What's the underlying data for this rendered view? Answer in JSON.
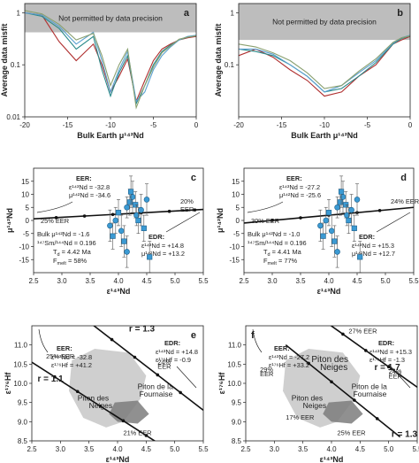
{
  "chart_data": [
    {
      "panel": "a",
      "type": "line",
      "ylabel": "Average data misfit",
      "xlabel": "Bulk Earth μ¹⁴²Nd",
      "yscale": "log",
      "xlim": [
        -20,
        0
      ],
      "ylim": [
        0.01,
        1.5
      ],
      "xticks": [
        "-20",
        "-15",
        "-10",
        "-5",
        "0"
      ],
      "yticks": [
        "0.01",
        "0.1",
        "1"
      ],
      "shade_text": "Not permitted by data precision",
      "shade_threshold": 0.42,
      "series": [
        {
          "color": "#b03030",
          "x": [
            -20,
            -18,
            -16,
            -14,
            -12,
            -11,
            -10,
            -9,
            -8,
            -7,
            -6,
            -5,
            -4,
            -3,
            -2,
            -1,
            0
          ],
          "y": [
            1.0,
            0.9,
            0.28,
            0.12,
            0.25,
            0.1,
            0.03,
            0.06,
            0.13,
            0.02,
            0.05,
            0.12,
            0.2,
            0.25,
            0.3,
            0.33,
            0.35
          ]
        },
        {
          "color": "#2a8a8a",
          "x": [
            -20,
            -18,
            -16,
            -14,
            -12,
            -11,
            -10,
            -9,
            -8,
            -7,
            -6,
            -5,
            -4,
            -3,
            -2,
            -1,
            0
          ],
          "y": [
            1.0,
            0.85,
            0.5,
            0.2,
            0.35,
            0.08,
            0.025,
            0.07,
            0.15,
            0.018,
            0.04,
            0.1,
            0.18,
            0.24,
            0.3,
            0.34,
            0.36
          ]
        },
        {
          "color": "#5aa0d0",
          "x": [
            -20,
            -18,
            -16,
            -14,
            -12,
            -11,
            -10,
            -9,
            -8,
            -7,
            -6,
            -5,
            -4,
            -3,
            -2,
            -1,
            0
          ],
          "y": [
            1.0,
            0.9,
            0.55,
            0.25,
            0.42,
            0.12,
            0.03,
            0.08,
            0.18,
            0.02,
            0.03,
            0.08,
            0.15,
            0.22,
            0.3,
            0.35,
            0.37
          ]
        },
        {
          "color": "#8aa070",
          "x": [
            -20,
            -18,
            -16,
            -14,
            -12,
            -11,
            -10,
            -9,
            -8,
            -7,
            -6,
            -5,
            -4,
            -3,
            -2,
            -1,
            0
          ],
          "y": [
            1.1,
            0.95,
            0.6,
            0.3,
            0.4,
            0.15,
            0.04,
            0.1,
            0.2,
            0.015,
            0.04,
            0.09,
            0.17,
            0.23,
            0.31,
            0.34,
            0.36
          ]
        }
      ]
    },
    {
      "panel": "b",
      "type": "line",
      "ylabel": "Average data misfit",
      "xlabel": "Bulk Earth μ¹⁴²Nd",
      "yscale": "log",
      "xlim": [
        -20,
        0
      ],
      "ylim": [
        0.01,
        1.5
      ],
      "xticks": [
        "-20",
        "-15",
        "-10",
        "-5",
        "0"
      ],
      "yticks": [
        "0.1",
        "1"
      ],
      "shade_text": "Not permitted by data precision",
      "shade_threshold": 0.3,
      "series": [
        {
          "color": "#b03030",
          "x": [
            -20,
            -18,
            -16,
            -14,
            -12,
            -10,
            -8,
            -6,
            -4,
            -2,
            -1,
            0
          ],
          "y": [
            0.15,
            0.2,
            0.14,
            0.08,
            0.05,
            0.025,
            0.03,
            0.06,
            0.1,
            0.25,
            0.3,
            0.35
          ]
        },
        {
          "color": "#2a8a8a",
          "x": [
            -20,
            -18,
            -16,
            -14,
            -12,
            -10,
            -8,
            -6,
            -4,
            -2,
            -1,
            0
          ],
          "y": [
            0.2,
            0.18,
            0.15,
            0.1,
            0.06,
            0.03,
            0.035,
            0.06,
            0.11,
            0.25,
            0.32,
            0.36
          ]
        },
        {
          "color": "#5aa0d0",
          "x": [
            -20,
            -18,
            -16,
            -14,
            -12,
            -10,
            -8,
            -6,
            -4,
            -2,
            -1,
            0
          ],
          "y": [
            0.2,
            0.2,
            0.16,
            0.1,
            0.06,
            0.03,
            0.04,
            0.07,
            0.12,
            0.26,
            0.33,
            0.37
          ]
        },
        {
          "color": "#8aa070",
          "x": [
            -20,
            -18,
            -16,
            -14,
            -12,
            -10,
            -8,
            -6,
            -4,
            -2,
            -1,
            0
          ],
          "y": [
            0.25,
            0.22,
            0.17,
            0.12,
            0.07,
            0.035,
            0.04,
            0.075,
            0.13,
            0.27,
            0.33,
            0.36
          ]
        }
      ]
    },
    {
      "panel": "c",
      "type": "scatter",
      "xlabel": "ε¹⁴³Nd",
      "ylabel": "μ¹⁴²Nd",
      "xlim": [
        2.5,
        5.5
      ],
      "ylim": [
        -20,
        20
      ],
      "xticks": [
        "2.5",
        "3.0",
        "3.5",
        "4.0",
        "4.5",
        "5.0",
        "5.5"
      ],
      "yticks": [
        "-20",
        "-15",
        "-10",
        "-5",
        "0",
        "5",
        "10",
        "15",
        "20"
      ],
      "line": {
        "x": [
          2.5,
          5.5
        ],
        "y": [
          0.6,
          4.2
        ]
      },
      "line_markers": [
        2.9,
        3.4,
        3.9,
        4.4,
        4.9,
        5.35
      ],
      "points": [
        {
          "x": 3.85,
          "y": -2,
          "err": 6
        },
        {
          "x": 3.9,
          "y": -6,
          "err": 5
        },
        {
          "x": 3.95,
          "y": 0,
          "err": 5
        },
        {
          "x": 4.0,
          "y": 3,
          "err": 5
        },
        {
          "x": 4.05,
          "y": -4,
          "err": 6
        },
        {
          "x": 4.1,
          "y": -8,
          "err": 6
        },
        {
          "x": 4.15,
          "y": 5,
          "err": 4
        },
        {
          "x": 4.2,
          "y": 7,
          "err": 5
        },
        {
          "x": 4.25,
          "y": 9,
          "err": 6
        },
        {
          "x": 4.3,
          "y": 6,
          "err": 5
        },
        {
          "x": 4.32,
          "y": 2,
          "err": 4
        },
        {
          "x": 4.35,
          "y": 0,
          "err": 5
        },
        {
          "x": 4.4,
          "y": 4,
          "err": 6
        },
        {
          "x": 4.45,
          "y": -3,
          "err": 5
        },
        {
          "x": 4.5,
          "y": 8,
          "err": 6
        },
        {
          "x": 4.55,
          "y": -14,
          "err": 6
        },
        {
          "x": 4.15,
          "y": -12,
          "err": 6
        },
        {
          "x": 4.22,
          "y": 11,
          "err": 6
        }
      ],
      "texts": {
        "eer_title": "EER:",
        "eer_l1": "ε¹⁴³Nd = -32.8",
        "eer_l2": "μ¹⁴²Nd = -34.6",
        "edr_title": "EDR:",
        "edr_l1": "ε¹⁴³Nd = +14.8",
        "edr_l2": "μ¹⁴²Nd = +13.2",
        "left_pct": "25% EER",
        "right_pct1": "20%",
        "right_pct2": "EER",
        "bulk1": "Bulk μ¹⁴²Nd = -1.6",
        "bulk2": "¹⁴⁷Sm/¹⁴⁴Nd = 0.196",
        "bulk3": "T",
        "bulk3sub": "d",
        "bulk3val": " = 4.42 Ma",
        "bulk4": "F",
        "bulk4sub": "melt",
        "bulk4val": " = 58%"
      }
    },
    {
      "panel": "d",
      "type": "scatter",
      "xlabel": "ε¹⁴³Nd",
      "ylabel": "μ¹⁴²Nd",
      "xlim": [
        2.5,
        5.5
      ],
      "ylim": [
        -20,
        20
      ],
      "xticks": [
        "2.5",
        "3.0",
        "3.5",
        "4.0",
        "4.5",
        "5.0",
        "5.5"
      ],
      "yticks": [
        "-20",
        "-15",
        "-10",
        "-5",
        "0",
        "5",
        "10",
        "15",
        "20"
      ],
      "line": {
        "x": [
          2.5,
          5.5
        ],
        "y": [
          -1.0,
          5.0
        ]
      },
      "line_markers": [
        3.0,
        3.5,
        4.0,
        4.5,
        4.9
      ],
      "points": [
        {
          "x": 3.85,
          "y": -2,
          "err": 6
        },
        {
          "x": 3.9,
          "y": -6,
          "err": 5
        },
        {
          "x": 3.95,
          "y": 0,
          "err": 5
        },
        {
          "x": 4.0,
          "y": 3,
          "err": 5
        },
        {
          "x": 4.05,
          "y": -4,
          "err": 6
        },
        {
          "x": 4.1,
          "y": -8,
          "err": 6
        },
        {
          "x": 4.15,
          "y": 5,
          "err": 4
        },
        {
          "x": 4.2,
          "y": 7,
          "err": 5
        },
        {
          "x": 4.25,
          "y": 9,
          "err": 6
        },
        {
          "x": 4.3,
          "y": 6,
          "err": 5
        },
        {
          "x": 4.32,
          "y": 2,
          "err": 4
        },
        {
          "x": 4.35,
          "y": 0,
          "err": 5
        },
        {
          "x": 4.4,
          "y": 4,
          "err": 6
        },
        {
          "x": 4.45,
          "y": -3,
          "err": 5
        },
        {
          "x": 4.5,
          "y": 8,
          "err": 6
        },
        {
          "x": 4.55,
          "y": -14,
          "err": 6
        },
        {
          "x": 4.15,
          "y": -12,
          "err": 6
        },
        {
          "x": 4.22,
          "y": 11,
          "err": 6
        }
      ],
      "texts": {
        "eer_title": "EER:",
        "eer_l1": "ε¹⁴³Nd = -27.2",
        "eer_l2": "μ¹⁴²Nd = -25.6",
        "edr_title": "EDR:",
        "edr_l1": "ε¹⁴³Nd = +15.3",
        "edr_l2": "μ¹⁴²Nd = +12.7",
        "left_pct": "30% EER",
        "right_pct1": "24% EER",
        "right_pct2": "",
        "bulk1": "Bulk μ¹⁴²Nd = -1.0",
        "bulk2": "¹⁴⁷Sm/¹⁴⁴Nd = 0.196",
        "bulk3": "T",
        "bulk3sub": "d",
        "bulk3val": " = 4.41 Ma",
        "bulk4": "F",
        "bulk4sub": "melt",
        "bulk4val": " = 77%"
      }
    },
    {
      "panel": "e",
      "type": "line",
      "xlabel": "ε¹⁴³Nd",
      "ylabel": "ε¹⁷⁶Hf",
      "xlim": [
        2.5,
        5.5
      ],
      "ylim": [
        8.5,
        11.5
      ],
      "xticks": [
        "2.5",
        "3.0",
        "3.5",
        "4.0",
        "4.5",
        "5.0",
        "5.5"
      ],
      "yticks": [
        "8.5",
        "9.0",
        "9.5",
        "10.0",
        "10.5",
        "11.0"
      ],
      "lines": [
        {
          "name_text": "r = 1.3",
          "x": [
            3.5,
            5.5
          ],
          "y": [
            11.6,
            9.3
          ],
          "markers": [
            3.9,
            4.3,
            4.7,
            5.1
          ]
        },
        {
          "name_text": "r = 1.1",
          "x": [
            2.5,
            4.7
          ],
          "y": [
            10.55,
            8.45
          ],
          "markers": [
            2.9,
            3.3,
            3.7,
            4.1,
            4.5
          ]
        }
      ],
      "texts": {
        "eer_title": "EER:",
        "eer_l1": "ε¹⁴³Nd = -32.8",
        "eer_l2": "ε¹⁷⁶Hf = +41.2",
        "edr_title": "EDR:",
        "edr_l1": "ε¹⁴³Nd = +14.8",
        "edr_l2": "ε¹⁷⁶Hf = -0.9",
        "pct_a": "24%",
        "pct_a2": "EER",
        "pct_b": "25% EER",
        "pct_c": "21% EER",
        "zone1": "Piton des",
        "zone1b": "Neiges",
        "zone2": "Piton de la",
        "zone2b": "Fournaise"
      }
    },
    {
      "panel": "f",
      "type": "line",
      "xlabel": "ε¹⁴³Nd",
      "ylabel": "ε¹⁷⁶Hf",
      "xlim": [
        2.5,
        5.5
      ],
      "ylim": [
        8.5,
        11.5
      ],
      "xticks": [
        "2.5",
        "3.0",
        "3.5",
        "4.0",
        "4.5",
        "5.0",
        "5.5"
      ],
      "yticks": [
        "8.5",
        "9.0",
        "9.5",
        "10.0",
        "10.5",
        "11.0"
      ],
      "lines": [
        {
          "name_text": "r = 1.7",
          "x": [
            3.9,
            5.5
          ],
          "y": [
            11.6,
            9.9
          ],
          "markers": [
            4.2,
            4.6,
            5.0
          ]
        },
        {
          "name_text": "r = 1.3",
          "x": [
            3.2,
            5.2
          ],
          "y": [
            11.0,
            8.6
          ],
          "markers": [
            3.6,
            4.0,
            4.4,
            4.8
          ]
        }
      ],
      "texts": {
        "eer_title": "EER:",
        "eer_l1": "ε¹⁴³Nd = -27.2",
        "eer_l2": "ε¹⁷⁶Hf = +33.2",
        "edr_title": "EDR:",
        "edr_l1": "ε¹⁴³Nd = +15.3",
        "edr_l2": "ε¹⁷⁶Hf = -1.3",
        "pct_a": "27% EER",
        "pct_a2": "",
        "pct_b": "29%",
        "pct_b2": "EER",
        "pct_c": "17% EER",
        "pct_d": "24%",
        "pct_d2": "EER",
        "pct_e": "25% EER",
        "zone1": "Piton des",
        "zone1b": "Neiges",
        "zone2": "Piton de la",
        "zone2b": "Fournaise"
      }
    }
  ]
}
